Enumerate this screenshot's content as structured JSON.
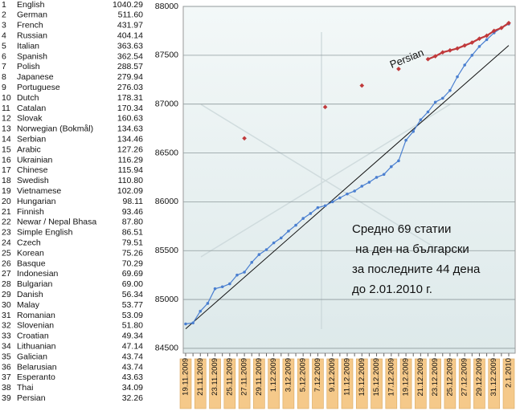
{
  "table": {
    "rows": [
      [
        1,
        "English",
        "1040.29"
      ],
      [
        2,
        "German",
        "511.60"
      ],
      [
        3,
        "French",
        "431.97"
      ],
      [
        4,
        "Russian",
        "404.14"
      ],
      [
        5,
        "Italian",
        "363.63"
      ],
      [
        6,
        "Spanish",
        "362.54"
      ],
      [
        7,
        "Polish",
        "288.57"
      ],
      [
        8,
        "Japanese",
        "279.94"
      ],
      [
        9,
        "Portuguese",
        "276.03"
      ],
      [
        10,
        "Dutch",
        "178.31"
      ],
      [
        11,
        "Catalan",
        "170.34"
      ],
      [
        12,
        "Slovak",
        "160.63"
      ],
      [
        13,
        "Norwegian (Bokmål)",
        "134.63"
      ],
      [
        14,
        "Serbian",
        "134.46"
      ],
      [
        15,
        "Arabic",
        "127.26"
      ],
      [
        16,
        "Ukrainian",
        "116.29"
      ],
      [
        17,
        "Chinese",
        "115.94"
      ],
      [
        18,
        "Swedish",
        "110.80"
      ],
      [
        19,
        "Vietnamese",
        "102.09"
      ],
      [
        20,
        "Hungarian",
        "98.11"
      ],
      [
        21,
        "Finnish",
        "93.46"
      ],
      [
        22,
        "Newar / Nepal Bhasa",
        "87.80"
      ],
      [
        23,
        "Simple English",
        "86.51"
      ],
      [
        24,
        "Czech",
        "79.51"
      ],
      [
        25,
        "Korean",
        "75.26"
      ],
      [
        26,
        "Basque",
        "70.29"
      ],
      [
        27,
        "Indonesian",
        "69.69"
      ],
      [
        28,
        "Bulgarian",
        "69.00"
      ],
      [
        29,
        "Danish",
        "56.34"
      ],
      [
        30,
        "Malay",
        "53.77"
      ],
      [
        31,
        "Romanian",
        "53.09"
      ],
      [
        32,
        "Slovenian",
        "51.80"
      ],
      [
        33,
        "Croatian",
        "49.34"
      ],
      [
        34,
        "Lithuanian",
        "47.14"
      ],
      [
        35,
        "Galician",
        "43.74"
      ],
      [
        36,
        "Belarusian",
        "43.74"
      ],
      [
        37,
        "Esperanto",
        "43.63"
      ],
      [
        38,
        "Thai",
        "34.09"
      ],
      [
        39,
        "Persian",
        "32.26"
      ]
    ]
  },
  "chart_data": {
    "type": "line",
    "categories": [
      "19.11.2009",
      null,
      "21.11.2009",
      null,
      "23.11.2009",
      null,
      "25.11.2009",
      null,
      "27.11.2009",
      null,
      "29.11.2009",
      null,
      "1.12.2009",
      null,
      "3.12.2009",
      null,
      "5.12.2009",
      null,
      "7.12.2009",
      null,
      "9.12.2009",
      null,
      "11.12.2009",
      null,
      "13.12.2009",
      null,
      "15.12.2009",
      null,
      "17.12.2009",
      null,
      "19.12.2009",
      null,
      "21.12.2009",
      null,
      "23.12.2009",
      null,
      "25.12.2009",
      null,
      "27.12.2009",
      null,
      "29.12.2009",
      null,
      "31.12.2009",
      null,
      "2.1.2010"
    ],
    "series": [
      {
        "color": "#4a7fd0",
        "values": [
          84750,
          84760,
          84880,
          84960,
          85110,
          85130,
          85160,
          85250,
          85280,
          85380,
          85460,
          85510,
          85580,
          85630,
          85700,
          85760,
          85830,
          85880,
          85940,
          85960,
          86000,
          86040,
          86080,
          86110,
          86160,
          86200,
          86250,
          86280,
          86360,
          86420,
          86630,
          86720,
          86840,
          86920,
          87020,
          87060,
          87140,
          87280,
          87400,
          87500,
          87590,
          87660,
          87730,
          87780,
          87820
        ]
      },
      {
        "name": "Persian",
        "color": "#c0393b",
        "values": [
          null,
          null,
          null,
          null,
          null,
          null,
          null,
          null,
          86650,
          null,
          null,
          null,
          null,
          null,
          null,
          null,
          null,
          null,
          null,
          86970,
          null,
          null,
          null,
          null,
          87190,
          null,
          null,
          null,
          null,
          87360,
          null,
          null,
          null,
          87460,
          87490,
          87530,
          87550,
          87570,
          87600,
          87630,
          87670,
          87700,
          87750,
          87780,
          87830
        ]
      }
    ],
    "trendline": [
      84700,
      87600
    ],
    "ylim": [
      84450,
      88000
    ],
    "yticks": [
      84500,
      85000,
      85500,
      86000,
      86500,
      87000,
      87500,
      88000
    ],
    "grid": true,
    "annotation": [
      "Средно 69 статии",
      " на ден на български",
      "за последните 44 дена",
      "до 2.01.2010 г."
    ]
  }
}
